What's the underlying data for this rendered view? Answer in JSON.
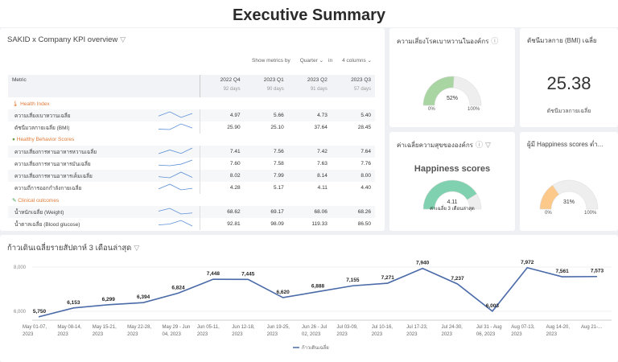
{
  "page_title": "Executive Summary",
  "kpi": {
    "title": "SAKID x Company KPI overview",
    "show_label": "Show metrics by",
    "period": "Quarter",
    "in_label": "in",
    "columns": "4 columns",
    "headers": [
      "Metric",
      "2022 Q4",
      "2023 Q1",
      "2023 Q2",
      "2023 Q3"
    ],
    "days": [
      "92 days",
      "90 days",
      "91 days",
      "57 days"
    ],
    "groups": [
      {
        "name": "Health Index",
        "icon": "thermometer-icon",
        "rows": [
          {
            "label": "ความเสี่ยงเบาหวานเฉลี่ย",
            "values": [
              "4.97",
              "5.66",
              "4.73",
              "5.40"
            ]
          },
          {
            "label": "ดัชนีมวลกายเฉลี่ย (BMI)",
            "values": [
              "25.90",
              "25.10",
              "37.64",
              "28.45"
            ]
          }
        ]
      },
      {
        "name": "Healthy Behavior Scores",
        "icon": "green-circle-icon",
        "rows": [
          {
            "label": "ความเสี่ยงการทานอาหารหวานเฉลี่ย",
            "values": [
              "7.41",
              "7.56",
              "7.42",
              "7.64"
            ]
          },
          {
            "label": "ความเสี่ยงการทานอาหารมันเฉลี่ย",
            "values": [
              "7.60",
              "7.58",
              "7.63",
              "7.76"
            ]
          },
          {
            "label": "ความเสี่ยงการทานอาหารเค็มเฉลี่ย",
            "values": [
              "8.02",
              "7.99",
              "8.14",
              "8.00"
            ]
          },
          {
            "label": "ความถี่การออกกำลังกายเฉลี่ย",
            "values": [
              "4.28",
              "5.17",
              "4.11",
              "4.40"
            ]
          }
        ]
      },
      {
        "name": "Clinical outcomes",
        "icon": "pencil-icon",
        "rows": [
          {
            "label": "น้ำหนักเฉลี่ย (Weight)",
            "values": [
              "68.62",
              "69.17",
              "68.06",
              "68.26"
            ]
          },
          {
            "label": "น้ำตาลเฉลี่ย (Blood glucose)",
            "values": [
              "92.81",
              "98.09",
              "119.33",
              "86.50"
            ]
          }
        ]
      }
    ]
  },
  "diabetes": {
    "title": "ความเสี่ยงโรคเบาหวานในองค์กร",
    "value": 52,
    "label": "52%",
    "min": "0%",
    "max": "100%",
    "color": "#a8d5a2"
  },
  "bmi": {
    "title": "ดัชนีมวลกาย (BMI) เฉลี่ย",
    "value": "25.38",
    "sub": "ดัชนีมวลกายเฉลี่ย"
  },
  "happy": {
    "title": "ค่าเฉลี่ยความสุขขององค์กร",
    "heading": "Happiness scores",
    "value": 4.11,
    "max_value": 5,
    "label": "4.11",
    "sub": "ค่าเฉลี่ย 3 เดือนล่าสุด",
    "color": "#7fd1b0"
  },
  "lowhappy": {
    "title": "ผู้มี Happiness scores ต่ำ...",
    "value": 31,
    "label": "31%",
    "min": "0%",
    "max": "100%",
    "color": "#fcc98a"
  },
  "chart_data": {
    "type": "line",
    "title": "ก้าวเดินเฉลี่ยรายสัปดาห์ 3 เดือนล่าสุด",
    "legend": "ก้าวเดินเฉลี่ย",
    "legend_position": "bottom",
    "color": "#4a6aa8",
    "categories": [
      "May 01-07, 2023",
      "May 08-14, 2023",
      "May 15-21, 2023",
      "May 22-28, 2023",
      "May 29 - Jun 04, 2023",
      "Jun 05-11, 2023",
      "Jun 12-18, 2023",
      "Jun 19-25, 2023",
      "Jun 26 - Jul 02, 2023",
      "Jul 03-09, 2023",
      "Jul 10-16, 2023",
      "Jul 17-23, 2023",
      "Jul 24-30, 2023",
      "Jul 31 - Aug 06, 2023",
      "Aug 07-13, 2023",
      "Aug 14-20, 2023",
      "Aug 21-..."
    ],
    "values": [
      5750,
      6153,
      6299,
      6394,
      6824,
      7448,
      7445,
      6620,
      6888,
      7155,
      7271,
      7940,
      7237,
      6003,
      7972,
      7561,
      7573
    ],
    "labels": [
      "5,750",
      "6,153",
      "6,299",
      "6,394",
      "6,824",
      "7,448",
      "7,445",
      "6,620",
      "6,888",
      "7,155",
      "7,271",
      "7,940",
      "7,237",
      "6,003",
      "7,972",
      "7,561",
      "7,573"
    ],
    "yticks": [
      6000,
      8000
    ],
    "ytick_labels": [
      "6,000",
      "8,000"
    ],
    "ylim": [
      5700,
      8100
    ],
    "grid": true
  }
}
